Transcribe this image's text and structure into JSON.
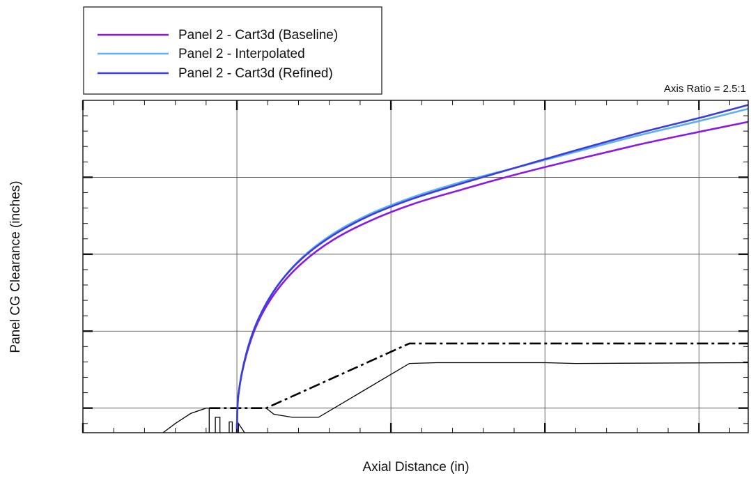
{
  "chart_data": {
    "type": "line",
    "title": "",
    "xlabel": "Axial Distance (in)",
    "ylabel": "Panel CG Clearance (inches)",
    "annotation": "Axis Ratio = 2.5:1",
    "xlim": [
      0,
      4.32
    ],
    "ylim": [
      0,
      4.32
    ],
    "x_major_ticks": [
      0,
      1,
      2,
      3,
      4
    ],
    "y_major_ticks": [
      0.32,
      1.32,
      2.32,
      3.32
    ],
    "tick_labels_visible": false,
    "grid": true,
    "legend_position": "top-left, outside plot",
    "colors": {
      "baseline": "#8a19e6",
      "interpolated": "#5fb0f2",
      "refined": "#3a3ddc",
      "geometry": "#000000"
    },
    "series": [
      {
        "name": "Panel 2 - Cart3d (Baseline)",
        "color": "#8a19e6",
        "x": [
          1.0,
          1.01,
          1.06,
          1.14,
          1.26,
          1.42,
          1.62,
          1.86,
          2.14,
          2.46,
          2.8,
          3.2,
          3.6,
          4.0,
          4.32
        ],
        "y": [
          0.05,
          0.5,
          1.0,
          1.45,
          1.85,
          2.2,
          2.5,
          2.75,
          2.97,
          3.16,
          3.35,
          3.55,
          3.74,
          3.91,
          4.04
        ]
      },
      {
        "name": "Panel 2 - Interpolated",
        "color": "#5fb0f2",
        "x": [
          1.0,
          1.01,
          1.06,
          1.14,
          1.26,
          1.42,
          1.62,
          1.86,
          2.14,
          2.46,
          2.8,
          3.2,
          3.6,
          4.0,
          4.32
        ],
        "y": [
          0.05,
          0.5,
          1.02,
          1.48,
          1.9,
          2.27,
          2.58,
          2.84,
          3.06,
          3.26,
          3.44,
          3.65,
          3.86,
          4.05,
          4.21
        ]
      },
      {
        "name": "Panel 2 - Cart3d (Refined)",
        "color": "#3a3ddc",
        "x": [
          1.0,
          1.01,
          1.06,
          1.14,
          1.26,
          1.42,
          1.62,
          1.86,
          2.14,
          2.46,
          2.8,
          3.2,
          3.6,
          4.0,
          4.32
        ],
        "y": [
          0.05,
          0.5,
          1.02,
          1.48,
          1.9,
          2.26,
          2.56,
          2.82,
          3.04,
          3.24,
          3.44,
          3.67,
          3.89,
          4.09,
          4.26
        ]
      }
    ],
    "geometry": [
      {
        "kind": "dash-dot",
        "x": [
          0.82,
          1.19,
          2.12,
          4.32
        ],
        "y": [
          0.32,
          0.32,
          1.16,
          1.16
        ]
      },
      {
        "kind": "solid",
        "x": [
          1.19,
          1.24,
          1.36,
          1.53,
          2.12,
          2.3,
          3.0,
          3.2,
          4.32
        ],
        "y": [
          0.32,
          0.24,
          0.2,
          0.2,
          0.9,
          0.91,
          0.91,
          0.9,
          0.91
        ]
      },
      {
        "kind": "solid",
        "x": [
          0.52,
          0.6,
          0.7,
          0.8,
          0.82,
          0.82
        ],
        "y": [
          0.0,
          0.12,
          0.25,
          0.32,
          0.32,
          0.0
        ]
      },
      {
        "kind": "solid",
        "x": [
          0.86,
          0.86,
          0.89,
          0.89
        ],
        "y": [
          0.0,
          0.2,
          0.2,
          0.0
        ]
      },
      {
        "kind": "solid",
        "x": [
          0.95,
          0.95,
          0.97,
          0.97
        ],
        "y": [
          0.0,
          0.14,
          0.14,
          0.0
        ]
      },
      {
        "kind": "solid",
        "x": [
          1.01,
          1.01,
          1.03,
          1.05
        ],
        "y": [
          0.0,
          0.12,
          0.06,
          0.0
        ]
      }
    ]
  }
}
